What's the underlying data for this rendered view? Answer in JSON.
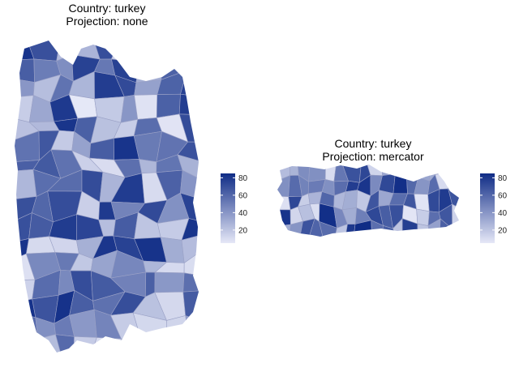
{
  "maps": [
    {
      "title_line1": "Country: turkey",
      "title_line2": "Projection: none"
    },
    {
      "title_line1": "Country: turkey",
      "title_line2": "Projection: mercator"
    }
  ],
  "legend": {
    "ticks": [
      "80",
      "60",
      "40",
      "20"
    ],
    "tick_values": [
      80,
      60,
      40,
      20
    ],
    "range": [
      5,
      85
    ],
    "color_low": "#e6e8f7",
    "color_high": "#0f2c86"
  },
  "colors": {
    "border": "#9aa1c6",
    "background": "#ffffff"
  }
}
